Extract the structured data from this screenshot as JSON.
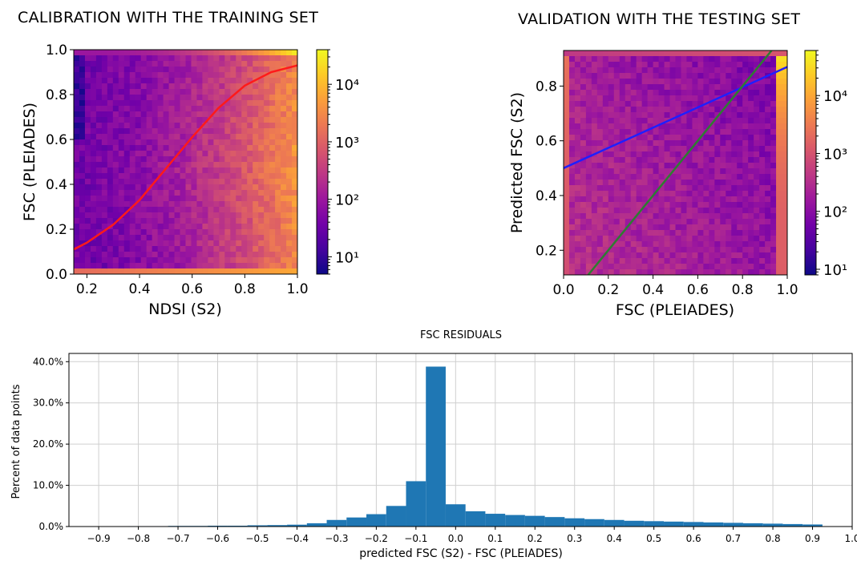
{
  "colors": {
    "colormap": [
      "#0d0887",
      "#46039f",
      "#7201a8",
      "#9c179e",
      "#bd3786",
      "#d8576b",
      "#ed7953",
      "#fb9f3a",
      "#fdca26",
      "#f0f921"
    ],
    "calibration_curve": "#ff1a1a",
    "regression_line": "#1f1fff",
    "identity_line": "#2e7d32",
    "bars": "#1f77b4",
    "grid": "#cfcfcf"
  },
  "chart_data": [
    {
      "type": "heatmap",
      "title": "CALIBRATION WITH THE TRAINING SET",
      "xlabel": "NDSI (S2)",
      "ylabel": "FSC (PLEIADES)",
      "xlim": [
        0.15,
        1.0
      ],
      "ylim": [
        0.0,
        1.0
      ],
      "xticks": [
        0.2,
        0.4,
        0.6,
        0.8,
        1.0
      ],
      "xtick_labels": [
        "0.2",
        "0.4",
        "0.6",
        "0.8",
        "1.0"
      ],
      "yticks": [
        0.0,
        0.2,
        0.4,
        0.6,
        0.8,
        1.0
      ],
      "ytick_labels": [
        "0.0",
        "0.2",
        "0.4",
        "0.6",
        "0.8",
        "1.0"
      ],
      "colorbar": {
        "scale": "log",
        "range": [
          5,
          40000
        ],
        "ticks": [
          10,
          100,
          1000,
          10000
        ],
        "tick_labels": [
          "10¹",
          "10²",
          "10³",
          "10⁴"
        ]
      },
      "curve": {
        "name": "calibration fit",
        "shape": "sigmoid",
        "x": [
          0.15,
          0.2,
          0.3,
          0.4,
          0.5,
          0.6,
          0.7,
          0.8,
          0.9,
          1.0
        ],
        "y": [
          0.11,
          0.14,
          0.22,
          0.33,
          0.47,
          0.61,
          0.74,
          0.84,
          0.9,
          0.93
        ]
      }
    },
    {
      "type": "heatmap",
      "title": "VALIDATION WITH THE TESTING SET",
      "xlabel": "FSC (PLEIADES)",
      "ylabel": "Predicted FSC (S2)",
      "xlim": [
        0.0,
        1.0
      ],
      "ylim": [
        0.11,
        0.93
      ],
      "xticks": [
        0.0,
        0.2,
        0.4,
        0.6,
        0.8,
        1.0
      ],
      "xtick_labels": [
        "0.0",
        "0.2",
        "0.4",
        "0.6",
        "0.8",
        "1.0"
      ],
      "yticks": [
        0.2,
        0.4,
        0.6,
        0.8
      ],
      "ytick_labels": [
        "0.2",
        "0.4",
        "0.6",
        "0.8"
      ],
      "colorbar": {
        "scale": "log",
        "range": [
          8,
          60000
        ],
        "ticks": [
          10,
          100,
          1000,
          10000
        ],
        "tick_labels": [
          "10¹",
          "10²",
          "10³",
          "10⁴"
        ]
      },
      "lines": [
        {
          "name": "regression",
          "x": [
            0.0,
            1.0
          ],
          "y": [
            0.5,
            0.87
          ]
        },
        {
          "name": "1:1",
          "x": [
            0.11,
            0.93
          ],
          "y": [
            0.11,
            0.93
          ]
        }
      ]
    },
    {
      "type": "bar",
      "title": "FSC RESIDUALS",
      "xlabel": "predicted FSC (S2) - FSC (PLEIADES)",
      "ylabel": "Percent of data points",
      "xlim": [
        -0.975,
        1.0
      ],
      "ylim": [
        0,
        42
      ],
      "bin_width": 0.05,
      "bin_start": [
        -0.825,
        -0.775,
        -0.725,
        -0.675,
        -0.625,
        -0.575,
        -0.525,
        -0.475,
        -0.425,
        -0.375,
        -0.325,
        -0.275,
        -0.225,
        -0.175,
        -0.125,
        -0.075,
        -0.025,
        0.025,
        0.075,
        0.125,
        0.175,
        0.225,
        0.275,
        0.325,
        0.375,
        0.425,
        0.475,
        0.525,
        0.575,
        0.625,
        0.675,
        0.725,
        0.775,
        0.825,
        0.875
      ],
      "values": [
        0.1,
        0.1,
        0.15,
        0.15,
        0.2,
        0.2,
        0.3,
        0.35,
        0.45,
        0.8,
        1.6,
        2.2,
        3.0,
        5.0,
        11.0,
        38.8,
        5.4,
        3.7,
        3.1,
        2.8,
        2.6,
        2.3,
        2.0,
        1.8,
        1.6,
        1.4,
        1.3,
        1.2,
        1.1,
        1.0,
        0.9,
        0.8,
        0.7,
        0.6,
        0.5
      ],
      "xticks": [
        -0.9,
        -0.8,
        -0.7,
        -0.6,
        -0.5,
        -0.4,
        -0.3,
        -0.2,
        -0.1,
        0.0,
        0.1,
        0.2,
        0.3,
        0.4,
        0.5,
        0.6,
        0.7,
        0.8,
        0.9,
        1.0
      ],
      "xtick_labels": [
        "−0.9",
        "−0.8",
        "−0.7",
        "−0.6",
        "−0.5",
        "−0.4",
        "−0.3",
        "−0.2",
        "−0.1",
        "0.0",
        "0.1",
        "0.2",
        "0.3",
        "0.4",
        "0.5",
        "0.6",
        "0.7",
        "0.8",
        "0.9",
        "1.0"
      ],
      "yticks": [
        0,
        10,
        20,
        30,
        40
      ],
      "ytick_labels": [
        "0.0%",
        "10.0%",
        "20.0%",
        "30.0%",
        "40.0%"
      ],
      "grid": true
    }
  ]
}
